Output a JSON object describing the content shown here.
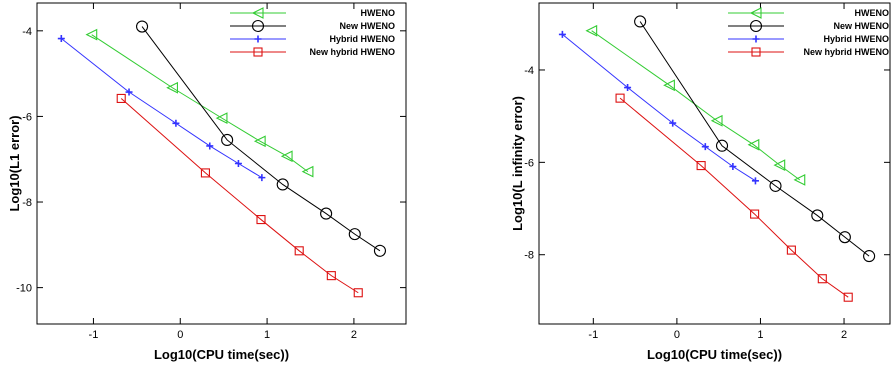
{
  "chart_data": [
    {
      "type": "line",
      "title": "",
      "xlabel": "Log10(CPU time(sec))",
      "ylabel": "Log10(L1 error)",
      "xlim": [
        -1.65,
        2.6
      ],
      "ylim": [
        -10.85,
        -3.35
      ],
      "xticks": [
        -1,
        0,
        1,
        2
      ],
      "yticks": [
        -10,
        -8,
        -6,
        -4
      ],
      "legend_position": "top-right",
      "grid": false,
      "series": [
        {
          "name": "HWENO",
          "color": "#33cc33",
          "marker": "triangle-left",
          "x": [
            -1.02,
            -0.09,
            0.48,
            0.92,
            1.23,
            1.47
          ],
          "y": [
            -4.09,
            -5.33,
            -6.04,
            -6.58,
            -6.93,
            -7.29
          ]
        },
        {
          "name": "New HWENO",
          "color": "#000000",
          "marker": "circle",
          "x": [
            -0.44,
            0.54,
            1.18,
            1.68,
            2.01,
            2.3
          ],
          "y": [
            -3.9,
            -6.55,
            -7.59,
            -8.27,
            -8.75,
            -9.14
          ]
        },
        {
          "name": "Hybrid HWENO",
          "color": "#3333ff",
          "marker": "plus",
          "x": [
            -1.37,
            -0.59,
            -0.05,
            0.34,
            0.67,
            0.94
          ],
          "y": [
            -4.18,
            -5.43,
            -6.16,
            -6.69,
            -7.1,
            -7.43
          ]
        },
        {
          "name": "New hybrid HWENO",
          "color": "#dd1111",
          "marker": "square",
          "x": [
            -0.68,
            0.29,
            0.93,
            1.37,
            1.74,
            2.05
          ],
          "y": [
            -5.58,
            -7.32,
            -8.41,
            -9.14,
            -9.72,
            -10.12
          ]
        }
      ]
    },
    {
      "type": "line",
      "title": "",
      "xlabel": "Log10(CPU time(sec))",
      "ylabel": "Log10(L infinity error)",
      "xlim": [
        -1.65,
        2.55
      ],
      "ylim": [
        -9.5,
        -2.55
      ],
      "xticks": [
        -1,
        0,
        1,
        2
      ],
      "yticks": [
        -8,
        -6,
        -4
      ],
      "legend_position": "top-right",
      "grid": false,
      "series": [
        {
          "name": "HWENO",
          "color": "#33cc33",
          "marker": "triangle-left",
          "x": [
            -1.02,
            -0.09,
            0.48,
            0.92,
            1.23,
            1.47
          ],
          "y": [
            -3.15,
            -4.33,
            -5.1,
            -5.62,
            -6.06,
            -6.38
          ]
        },
        {
          "name": "New HWENO",
          "color": "#000000",
          "marker": "circle",
          "x": [
            -0.44,
            0.54,
            1.18,
            1.68,
            2.01,
            2.3
          ],
          "y": [
            -2.95,
            -5.64,
            -6.51,
            -7.15,
            -7.62,
            -8.03
          ]
        },
        {
          "name": "Hybrid HWENO",
          "color": "#3333ff",
          "marker": "plus",
          "x": [
            -1.37,
            -0.59,
            -0.05,
            0.34,
            0.67,
            0.94
          ],
          "y": [
            -3.23,
            -4.38,
            -5.15,
            -5.66,
            -6.09,
            -6.4
          ]
        },
        {
          "name": "New hybrid HWENO",
          "color": "#dd1111",
          "marker": "square",
          "x": [
            -0.68,
            0.29,
            0.93,
            1.37,
            1.74,
            2.05
          ],
          "y": [
            -4.61,
            -6.07,
            -7.12,
            -7.9,
            -8.52,
            -8.92
          ]
        }
      ]
    }
  ]
}
